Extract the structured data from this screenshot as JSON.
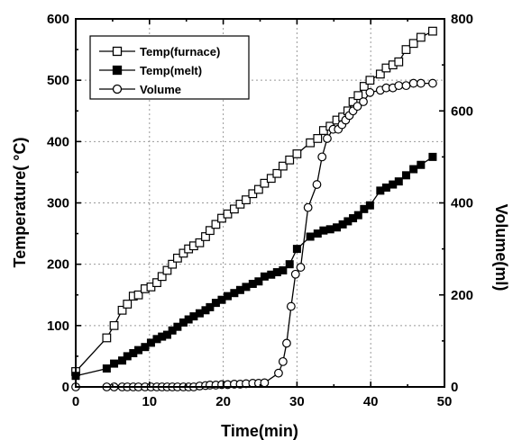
{
  "chart_data": {
    "type": "line",
    "xlabel": "Time(min)",
    "ylabel": "Temperature(  °C)",
    "y2label": "Volume(ml)",
    "xlim": [
      0,
      50
    ],
    "ylim": [
      0,
      600
    ],
    "y2lim": [
      0,
      800
    ],
    "xticks": [
      0,
      10,
      20,
      30,
      40,
      50
    ],
    "yticks": [
      0,
      100,
      200,
      300,
      400,
      500,
      600
    ],
    "y2ticks": [
      0,
      200,
      400,
      600,
      800
    ],
    "grid": true,
    "legend_position": "top-left",
    "series": [
      {
        "name": "Temp(furnace)",
        "axis": "left",
        "marker": "open-square",
        "x": [
          0,
          4.2,
          5.2,
          6.3,
          7,
          7.8,
          8.5,
          9.4,
          10.2,
          11,
          11.7,
          12.4,
          13.1,
          13.8,
          14.6,
          15.3,
          16,
          16.8,
          17.6,
          18.2,
          19,
          19.8,
          20.6,
          21.5,
          22.3,
          23.1,
          24,
          24.8,
          25.6,
          26.5,
          27.3,
          28.1,
          29,
          30,
          31.8,
          32.8,
          33.6,
          34.5,
          35.4,
          36.2,
          36.9,
          37.6,
          38.3,
          39.1,
          39.9,
          41.3,
          42.1,
          43,
          43.8,
          44.8,
          45.8,
          46.8,
          48.4
        ],
        "y": [
          25,
          80,
          100,
          125,
          135,
          148,
          150,
          160,
          163,
          170,
          180,
          190,
          200,
          210,
          218,
          225,
          230,
          235,
          245,
          255,
          265,
          275,
          282,
          290,
          298,
          305,
          315,
          322,
          332,
          340,
          348,
          360,
          370,
          380,
          398,
          405,
          418,
          425,
          435,
          440,
          450,
          465,
          475,
          490,
          500,
          510,
          520,
          525,
          530,
          550,
          560,
          570,
          580
        ]
      },
      {
        "name": "Temp(melt)",
        "axis": "left",
        "marker": "filled-square",
        "x": [
          0,
          4.2,
          5.2,
          6.3,
          7,
          7.8,
          8.5,
          9.4,
          10.2,
          11,
          11.7,
          12.4,
          13.1,
          13.8,
          14.6,
          15.3,
          16,
          16.8,
          17.6,
          18.2,
          19,
          19.8,
          20.6,
          21.5,
          22.3,
          23.1,
          24,
          24.8,
          25.6,
          26.5,
          27.3,
          28.1,
          29,
          30,
          31.8,
          32.8,
          33.6,
          34.5,
          35.4,
          36.2,
          36.9,
          37.6,
          38.3,
          39.1,
          39.9,
          41.3,
          42.1,
          43,
          43.8,
          44.8,
          45.8,
          46.8,
          48.4
        ],
        "y": [
          18,
          30,
          38,
          43,
          50,
          55,
          60,
          65,
          72,
          78,
          82,
          85,
          92,
          98,
          105,
          110,
          115,
          120,
          125,
          130,
          137,
          142,
          148,
          153,
          158,
          163,
          168,
          172,
          180,
          183,
          187,
          190,
          200,
          225,
          245,
          250,
          255,
          257,
          260,
          265,
          270,
          275,
          280,
          290,
          296,
          320,
          325,
          330,
          335,
          345,
          355,
          362,
          375
        ]
      },
      {
        "name": "Volume",
        "axis": "right",
        "marker": "open-circle",
        "x": [
          0,
          4.2,
          5.2,
          6.3,
          7,
          7.8,
          8.5,
          9.4,
          10.2,
          11,
          11.7,
          12.4,
          13.1,
          13.8,
          14.6,
          15.3,
          16,
          16.8,
          17.6,
          18.2,
          19,
          19.8,
          20.6,
          21.5,
          22.3,
          23.1,
          24,
          24.8,
          25.6,
          27.5,
          28.1,
          28.6,
          29.2,
          29.8,
          30.5,
          31.5,
          32.7,
          33.4,
          34.1,
          34.9,
          35.6,
          36.1,
          36.6,
          37.1,
          37.6,
          38.2,
          39,
          39.9,
          41.3,
          42.1,
          43,
          43.8,
          44.8,
          45.8,
          46.8,
          48.4
        ],
        "y": [
          0,
          0,
          0,
          0,
          0,
          0,
          0,
          0,
          0,
          0,
          0,
          0,
          0,
          0,
          0,
          0,
          0,
          2,
          3,
          4,
          4,
          5,
          5,
          6,
          6,
          7,
          8,
          8,
          9,
          30,
          55,
          95,
          175,
          245,
          260,
          390,
          440,
          500,
          540,
          560,
          560,
          570,
          580,
          590,
          600,
          610,
          620,
          640,
          645,
          650,
          650,
          655,
          655,
          660,
          660,
          660
        ]
      }
    ]
  }
}
